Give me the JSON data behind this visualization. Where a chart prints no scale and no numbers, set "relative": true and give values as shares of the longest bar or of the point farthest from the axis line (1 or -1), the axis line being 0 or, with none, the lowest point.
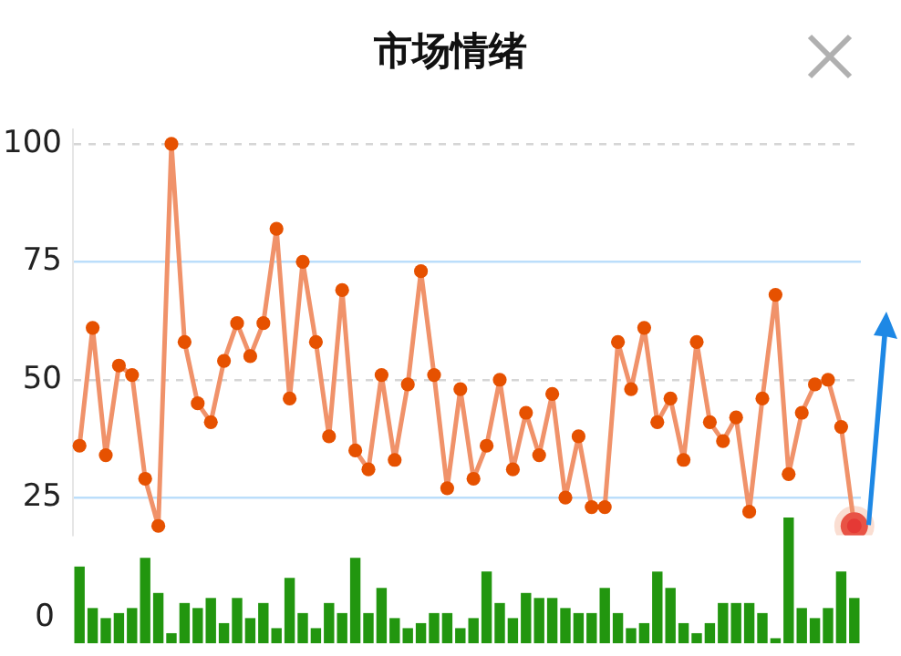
{
  "chart_data": [
    {
      "type": "line",
      "title": "市场情绪",
      "categories": [
        null,
        null,
        null,
        null,
        null,
        null,
        null,
        null,
        null,
        null,
        null,
        null,
        null,
        null,
        null,
        null,
        null,
        null,
        null,
        null,
        null,
        null,
        null,
        null,
        null,
        null,
        null,
        null,
        null,
        null,
        null,
        null,
        null,
        null,
        null,
        null,
        null,
        null,
        null,
        null,
        null,
        null,
        null,
        null,
        null,
        null,
        null,
        null,
        null,
        null,
        null,
        null,
        null,
        null,
        null,
        null,
        null,
        null,
        null,
        null
      ],
      "series": [
        {
          "color": "#f0926a",
          "colors": [
            "#e65100",
            "#e65100",
            "#e65100",
            "#e65100",
            "#e65100",
            "#e65100",
            "#e65100",
            "#e65100",
            "#e65100",
            "#e65100",
            "#e65100",
            "#e65100",
            "#e65100",
            "#e65100",
            "#e65100",
            "#e65100",
            "#e65100",
            "#e65100",
            "#e65100",
            "#e65100",
            "#e65100",
            "#e65100",
            "#e65100",
            "#e65100",
            "#e65100",
            "#e65100",
            "#e65100",
            "#e65100",
            "#e65100",
            "#e65100",
            "#e65100",
            "#e65100",
            "#e65100",
            "#e65100",
            "#e65100",
            "#e65100",
            "#e65100",
            "#e65100",
            "#e65100",
            "#e65100",
            "#e65100",
            "#e65100",
            "#e65100",
            "#e65100",
            "#e65100",
            "#e65100",
            "#e65100",
            "#e65100",
            "#e65100",
            "#e65100",
            "#e65100",
            "#e65100",
            "#e65100",
            "#e65100",
            "#e65100",
            "#e65100",
            "#e65100",
            "#e65100",
            "#e65100",
            "#e53935"
          ],
          "values": [
            36,
            61,
            34,
            53,
            51,
            29,
            19,
            100,
            58,
            45,
            41,
            54,
            62,
            55,
            62,
            82,
            46,
            75,
            58,
            38,
            69,
            35,
            31,
            51,
            33,
            49,
            73,
            51,
            27,
            48,
            29,
            36,
            50,
            31,
            43,
            34,
            47,
            25,
            38,
            23,
            23,
            58,
            48,
            61,
            41,
            46,
            33,
            58,
            41,
            37,
            42,
            22,
            46,
            68,
            30,
            43,
            49,
            50,
            40,
            19
          ]
        }
      ],
      "ylim": [
        17,
        103
      ],
      "yticks": [
        25,
        50,
        75,
        100
      ],
      "grid": "y",
      "tick_labels": "y",
      "marker": "circle"
    },
    {
      "type": "bar",
      "categories": [
        null,
        null,
        null,
        null,
        null,
        null,
        null,
        null,
        null,
        null,
        null,
        null,
        null,
        null,
        null,
        null,
        null,
        null,
        null,
        null,
        null,
        null,
        null,
        null,
        null,
        null,
        null,
        null,
        null,
        null,
        null,
        null,
        null,
        null,
        null,
        null,
        null,
        null,
        null,
        null,
        null,
        null,
        null,
        null,
        null,
        null,
        null,
        null,
        null,
        null,
        null,
        null,
        null,
        null,
        null,
        null,
        null,
        null,
        null,
        null
      ],
      "color": "#22960f",
      "relative": true,
      "tick_labels": false,
      "annotations": [
        "0"
      ],
      "values": [
        0.61,
        0.28,
        0.2,
        0.24,
        0.28,
        0.68,
        0.4,
        0.08,
        0.32,
        0.28,
        0.36,
        0.16,
        0.36,
        0.2,
        0.32,
        0.12,
        0.52,
        0.24,
        0.12,
        0.32,
        0.24,
        0.68,
        0.24,
        0.44,
        0.2,
        0.12,
        0.16,
        0.24,
        0.24,
        0.12,
        0.2,
        0.57,
        0.32,
        0.2,
        0.4,
        0.36,
        0.36,
        0.28,
        0.24,
        0.24,
        0.44,
        0.24,
        0.12,
        0.16,
        0.57,
        0.44,
        0.16,
        0.08,
        0.16,
        0.32,
        0.32,
        0.32,
        0.24,
        0.04,
        1,
        0.28,
        0.2,
        0.28,
        0.57,
        0.36
      ]
    }
  ]
}
